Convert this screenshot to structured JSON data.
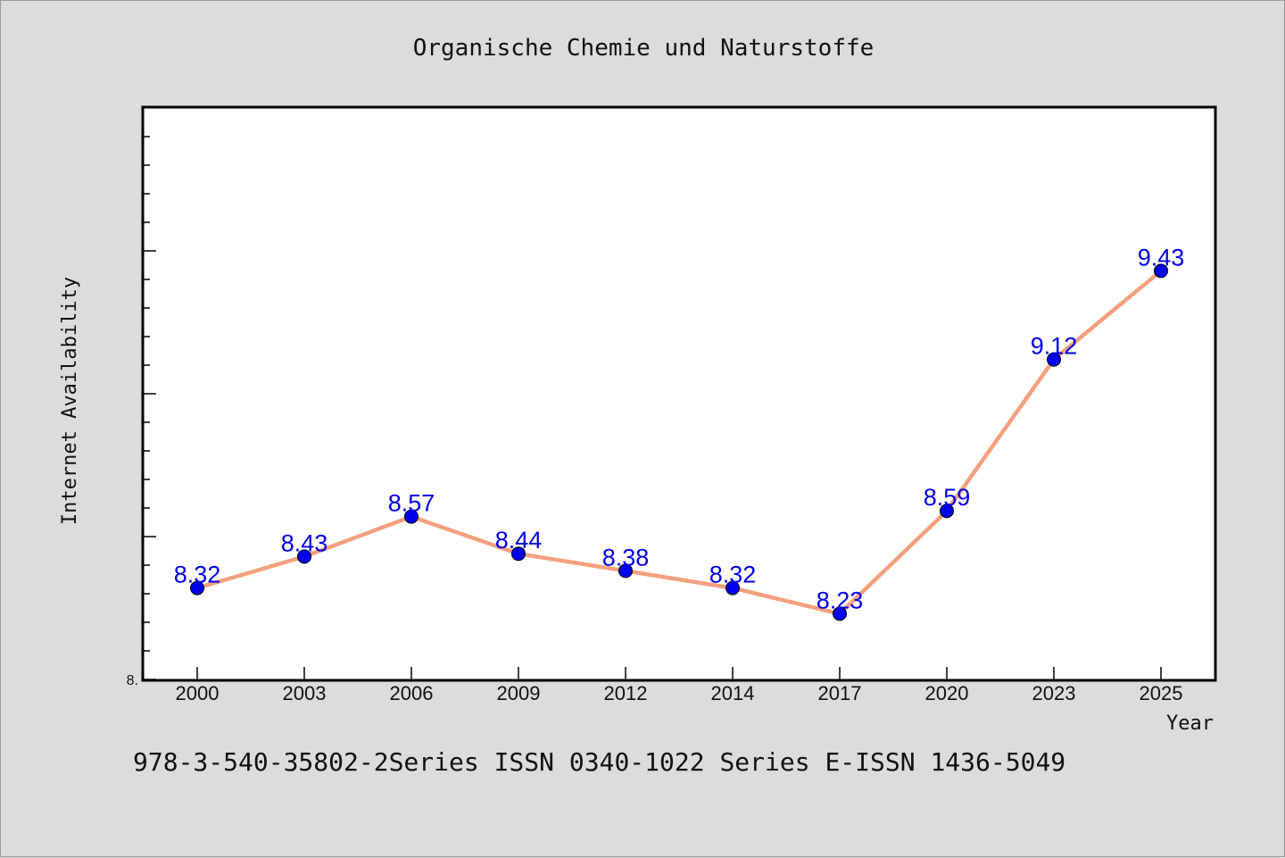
{
  "chart_data": {
    "type": "line",
    "title": "Organische Chemie und Naturstoffe",
    "xlabel": "Year",
    "ylabel": "Internet Availability",
    "categories": [
      "2000",
      "2003",
      "2006",
      "2009",
      "2012",
      "2014",
      "2017",
      "2020",
      "2023",
      "2025"
    ],
    "series": [
      {
        "values": [
          8.32,
          8.43,
          8.57,
          8.44,
          8.38,
          8.32,
          8.23,
          8.59,
          9.12,
          9.43
        ],
        "data_labels": [
          "8.32",
          "8.43",
          "8.57",
          "8.44",
          "8.38",
          "8.32",
          "8.23",
          "8.59",
          "9.12",
          "9.43"
        ],
        "line_color": "#f4a07e",
        "marker_color": "#0000ee",
        "label_color": "#0000ee"
      }
    ],
    "ylim": [
      8.0,
      10.0
    ],
    "y_tick_labels": [
      {
        "value": 8.0,
        "label": "8."
      }
    ],
    "grid": false,
    "legend": "none"
  },
  "footer": {
    "text": "978-3-540-35802-2Series ISSN 0340-1022 Series E-ISSN 1436-5049"
  },
  "colors": {
    "background": "#dcdcdc",
    "plot_background": "#ffffff",
    "axis": "#000000"
  }
}
